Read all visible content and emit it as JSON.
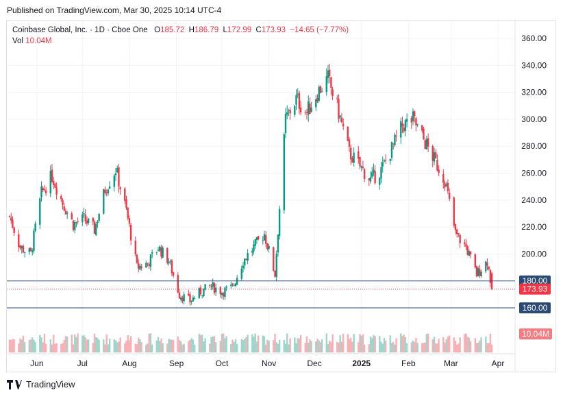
{
  "header": {
    "published": "Published on TradingView.com, Mar 30, 2025 10:14 UTC-4"
  },
  "legend": {
    "symbol": "Coinbase Global, Inc. · 1D · Cboe One",
    "o_label": "O",
    "o_value": "185.72",
    "h_label": "H",
    "h_value": "186.79",
    "l_label": "L",
    "l_value": "172.99",
    "c_label": "C",
    "c_value": "173.93",
    "change": "−14.65 (−7.77%)",
    "vol_label": "Vol",
    "vol_value": "10.04M"
  },
  "footer": {
    "brand": "TradingView",
    "logo_icon": "tradingview-logo-icon"
  },
  "colors": {
    "up": "#089981",
    "down": "#f23645",
    "hline": "#2a4a73",
    "price_tag": "#f23645",
    "volume_tag": "#f77c80"
  },
  "chart_data": {
    "type": "candlestick",
    "y_ticks": [
      "360.00",
      "340.00",
      "320.00",
      "300.00",
      "280.00",
      "260.00",
      "240.00",
      "220.00",
      "200.00",
      "180.00",
      "160.00"
    ],
    "x_ticks": [
      {
        "label": "Jun",
        "bold": false
      },
      {
        "label": "Jul",
        "bold": false
      },
      {
        "label": "Aug",
        "bold": false
      },
      {
        "label": "Sep",
        "bold": false
      },
      {
        "label": "Oct",
        "bold": false
      },
      {
        "label": "Nov",
        "bold": false
      },
      {
        "label": "Dec",
        "bold": false
      },
      {
        "label": "2025",
        "bold": true
      },
      {
        "label": "Feb",
        "bold": false
      },
      {
        "label": "Mar",
        "bold": false
      },
      {
        "label": "Apr",
        "bold": false
      }
    ],
    "x_tick_dates": [
      "2024-06-01",
      "2024-07-01",
      "2024-08-01",
      "2024-09-01",
      "2024-10-01",
      "2024-11-01",
      "2024-12-01",
      "2025-01-01",
      "2025-02-01",
      "2025-03-01",
      "2025-04-01"
    ],
    "ylim": [
      142,
      368
    ],
    "horizontal_lines": [
      {
        "value": 180,
        "label": "180.00"
      },
      {
        "value": 160,
        "label": "160.00"
      }
    ],
    "last_price": {
      "value": 173.93,
      "label": "173.93"
    },
    "volume_label": "10.04M",
    "grid": true,
    "series": [
      {
        "date": "2024-05-14",
        "close": 228
      },
      {
        "date": "2024-05-21",
        "close": 205
      },
      {
        "date": "2024-05-28",
        "close": 200
      },
      {
        "date": "2024-06-04",
        "close": 245
      },
      {
        "date": "2024-06-11",
        "close": 258
      },
      {
        "date": "2024-06-18",
        "close": 238
      },
      {
        "date": "2024-06-25",
        "close": 222
      },
      {
        "date": "2024-07-02",
        "close": 226
      },
      {
        "date": "2024-07-09",
        "close": 218
      },
      {
        "date": "2024-07-16",
        "close": 248
      },
      {
        "date": "2024-07-23",
        "close": 263
      },
      {
        "date": "2024-07-30",
        "close": 232
      },
      {
        "date": "2024-08-06",
        "close": 190
      },
      {
        "date": "2024-08-13",
        "close": 193
      },
      {
        "date": "2024-08-20",
        "close": 205
      },
      {
        "date": "2024-08-27",
        "close": 195
      },
      {
        "date": "2024-09-03",
        "close": 170
      },
      {
        "date": "2024-09-10",
        "close": 165
      },
      {
        "date": "2024-09-17",
        "close": 172
      },
      {
        "date": "2024-09-24",
        "close": 176
      },
      {
        "date": "2024-10-01",
        "close": 172
      },
      {
        "date": "2024-10-08",
        "close": 175
      },
      {
        "date": "2024-10-15",
        "close": 195
      },
      {
        "date": "2024-10-22",
        "close": 205
      },
      {
        "date": "2024-10-29",
        "close": 215
      },
      {
        "date": "2024-11-05",
        "close": 185
      },
      {
        "date": "2024-11-12",
        "close": 300
      },
      {
        "date": "2024-11-19",
        "close": 315
      },
      {
        "date": "2024-11-26",
        "close": 305
      },
      {
        "date": "2024-12-03",
        "close": 320
      },
      {
        "date": "2024-12-10",
        "close": 330
      },
      {
        "date": "2024-12-17",
        "close": 305
      },
      {
        "date": "2024-12-24",
        "close": 275
      },
      {
        "date": "2024-12-31",
        "close": 265
      },
      {
        "date": "2025-01-07",
        "close": 255
      },
      {
        "date": "2025-01-14",
        "close": 262
      },
      {
        "date": "2025-01-21",
        "close": 278
      },
      {
        "date": "2025-01-28",
        "close": 295
      },
      {
        "date": "2025-02-04",
        "close": 300
      },
      {
        "date": "2025-02-11",
        "close": 285
      },
      {
        "date": "2025-02-18",
        "close": 270
      },
      {
        "date": "2025-02-25",
        "close": 255
      },
      {
        "date": "2025-03-04",
        "close": 215
      },
      {
        "date": "2025-03-11",
        "close": 205
      },
      {
        "date": "2025-03-18",
        "close": 185
      },
      {
        "date": "2025-03-25",
        "close": 195
      },
      {
        "date": "2025-03-28",
        "close": 173.93
      }
    ]
  }
}
